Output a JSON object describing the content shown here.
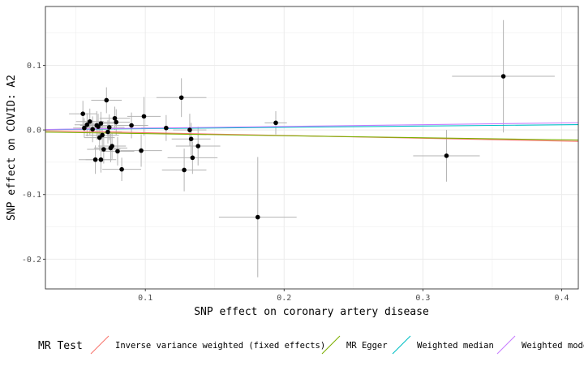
{
  "chart_data": {
    "type": "scatter",
    "title": "",
    "xlabel": "SNP effect on coronary artery disease",
    "ylabel": "SNP effect on COVID: A2",
    "xlim": [
      0.028,
      0.412
    ],
    "ylim": [
      -0.246,
      0.191
    ],
    "x_ticks": [
      0.1,
      0.2,
      0.3,
      0.4
    ],
    "x_tick_labels": [
      "0.1",
      "0.2",
      "0.3",
      "0.4"
    ],
    "y_ticks": [
      -0.2,
      -0.1,
      0.0,
      0.1
    ],
    "y_tick_labels": [
      "-0.2",
      "-0.1",
      "0.0",
      "0.1"
    ],
    "grid": true,
    "legend_position": "bottom",
    "legend_title": "MR Test",
    "points": [
      {
        "x": 0.055,
        "y": 0.025,
        "xerr": 0.01,
        "yerr": 0.02
      },
      {
        "x": 0.058,
        "y": 0.008,
        "xerr": 0.009,
        "yerr": 0.018
      },
      {
        "x": 0.06,
        "y": 0.013,
        "xerr": 0.01,
        "yerr": 0.02
      },
      {
        "x": 0.056,
        "y": 0.003,
        "xerr": 0.008,
        "yerr": 0.015
      },
      {
        "x": 0.062,
        "y": 0.001,
        "xerr": 0.01,
        "yerr": 0.02
      },
      {
        "x": 0.065,
        "y": 0.007,
        "xerr": 0.012,
        "yerr": 0.022
      },
      {
        "x": 0.066,
        "y": 0.005,
        "xerr": 0.01,
        "yerr": 0.02
      },
      {
        "x": 0.067,
        "y": -0.012,
        "xerr": 0.011,
        "yerr": 0.02
      },
      {
        "x": 0.068,
        "y": 0.01,
        "xerr": 0.01,
        "yerr": 0.018
      },
      {
        "x": 0.069,
        "y": -0.008,
        "xerr": 0.012,
        "yerr": 0.022
      },
      {
        "x": 0.07,
        "y": -0.03,
        "xerr": 0.012,
        "yerr": 0.022
      },
      {
        "x": 0.072,
        "y": 0.046,
        "xerr": 0.011,
        "yerr": 0.02
      },
      {
        "x": 0.073,
        "y": -0.003,
        "xerr": 0.01,
        "yerr": 0.018
      },
      {
        "x": 0.074,
        "y": 0.004,
        "xerr": 0.011,
        "yerr": 0.02
      },
      {
        "x": 0.075,
        "y": -0.028,
        "xerr": 0.012,
        "yerr": 0.022
      },
      {
        "x": 0.076,
        "y": -0.025,
        "xerr": 0.01,
        "yerr": 0.02
      },
      {
        "x": 0.078,
        "y": 0.018,
        "xerr": 0.011,
        "yerr": 0.018
      },
      {
        "x": 0.079,
        "y": 0.012,
        "xerr": 0.01,
        "yerr": 0.02
      },
      {
        "x": 0.08,
        "y": -0.033,
        "xerr": 0.012,
        "yerr": 0.022
      },
      {
        "x": 0.064,
        "y": -0.046,
        "xerr": 0.012,
        "yerr": 0.022
      },
      {
        "x": 0.068,
        "y": -0.046,
        "xerr": 0.011,
        "yerr": 0.02
      },
      {
        "x": 0.083,
        "y": -0.061,
        "xerr": 0.014,
        "yerr": 0.018
      },
      {
        "x": 0.09,
        "y": 0.007,
        "xerr": 0.012,
        "yerr": 0.02
      },
      {
        "x": 0.097,
        "y": -0.032,
        "xerr": 0.015,
        "yerr": 0.025
      },
      {
        "x": 0.099,
        "y": 0.021,
        "xerr": 0.012,
        "yerr": 0.03
      },
      {
        "x": 0.115,
        "y": 0.003,
        "xerr": 0.018,
        "yerr": 0.02
      },
      {
        "x": 0.126,
        "y": 0.05,
        "xerr": 0.018,
        "yerr": 0.03
      },
      {
        "x": 0.128,
        "y": -0.062,
        "xerr": 0.016,
        "yerr": 0.033
      },
      {
        "x": 0.132,
        "y": 0.0,
        "xerr": 0.012,
        "yerr": 0.025
      },
      {
        "x": 0.133,
        "y": -0.014,
        "xerr": 0.014,
        "yerr": 0.025
      },
      {
        "x": 0.134,
        "y": -0.043,
        "xerr": 0.018,
        "yerr": 0.025
      },
      {
        "x": 0.138,
        "y": -0.025,
        "xerr": 0.016,
        "yerr": 0.03
      },
      {
        "x": 0.181,
        "y": -0.135,
        "xerr": 0.028,
        "yerr": 0.093
      },
      {
        "x": 0.194,
        "y": 0.011,
        "xerr": 0.008,
        "yerr": 0.018
      },
      {
        "x": 0.317,
        "y": -0.04,
        "xerr": 0.024,
        "yerr": 0.04
      },
      {
        "x": 0.358,
        "y": 0.083,
        "xerr": 0.037,
        "yerr": 0.087
      }
    ],
    "series": [
      {
        "name": "Inverse variance weighted (fixed effects)",
        "type": "line",
        "color": "#F8766D",
        "intercept": 0.0,
        "slope": -0.043
      },
      {
        "name": "MR Egger",
        "type": "line",
        "color": "#7CAE00",
        "intercept": -0.0025,
        "slope": -0.032
      },
      {
        "name": "Weighted median",
        "type": "line",
        "color": "#00BFC4",
        "intercept": 0.0,
        "slope": 0.02
      },
      {
        "name": "Weighted mode",
        "type": "line",
        "color": "#C77CFF",
        "intercept": 0.0,
        "slope": 0.027
      }
    ],
    "colors": {
      "points": "#000000",
      "errorbars": "#b3b3b3",
      "grid": "#ebebeb",
      "panel_border": "#333333"
    }
  }
}
